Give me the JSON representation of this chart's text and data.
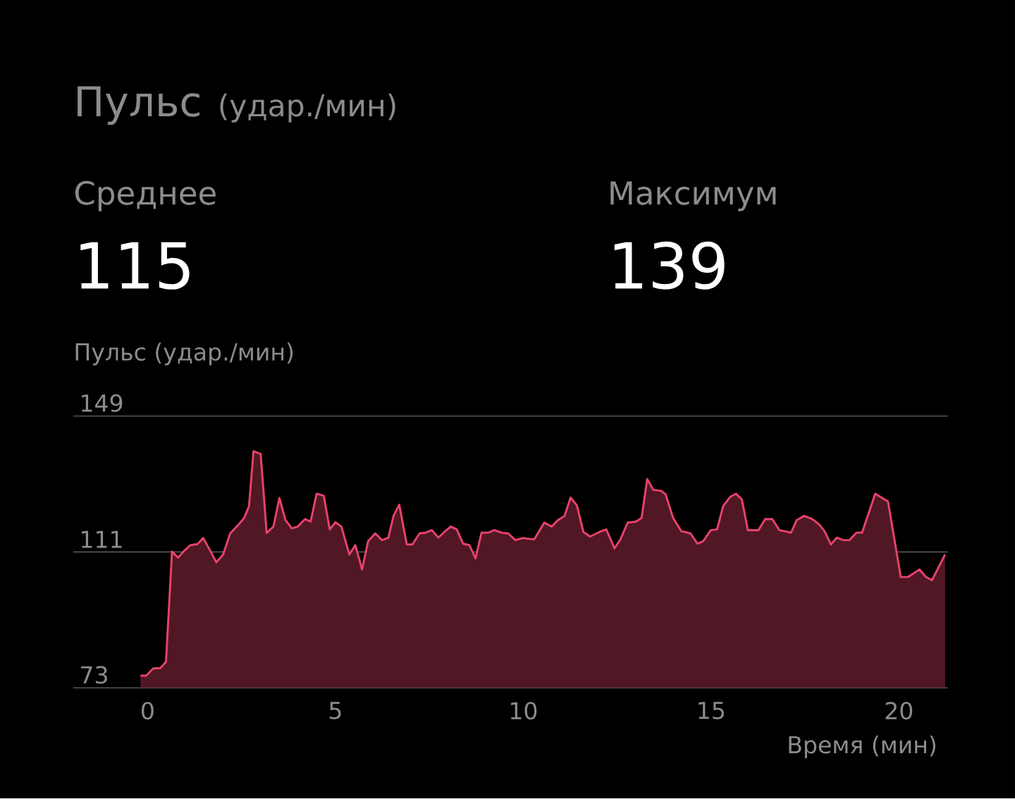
{
  "chart_data": {
    "type": "area",
    "title": "Пульс",
    "subtitle": "(удар./мин)",
    "ylabel": "Пульс (удар./мин)",
    "xlabel": "Время (мин)",
    "annotations": [
      "Среднее",
      "115",
      "Максимум",
      "139"
    ],
    "x": [
      -0.19,
      -0.04,
      0.15,
      0.34,
      0.49,
      0.65,
      0.81,
      0.98,
      1.14,
      1.33,
      1.48,
      1.68,
      1.83,
      2.01,
      2.2,
      2.39,
      2.57,
      2.7,
      2.82,
      3.01,
      3.17,
      3.35,
      3.51,
      3.67,
      3.84,
      4.0,
      4.19,
      4.34,
      4.5,
      4.69,
      4.85,
      5.0,
      5.16,
      5.37,
      5.53,
      5.71,
      5.87,
      6.06,
      6.24,
      6.41,
      6.55,
      6.7,
      6.9,
      7.05,
      7.24,
      7.4,
      7.57,
      7.74,
      7.9,
      8.07,
      8.23,
      8.4,
      8.57,
      8.73,
      8.89,
      9.07,
      9.23,
      9.42,
      9.6,
      9.79,
      9.98,
      10.29,
      10.56,
      10.76,
      10.91,
      11.1,
      11.26,
      11.43,
      11.6,
      11.78,
      12.03,
      12.21,
      12.43,
      12.59,
      12.78,
      13.0,
      13.15,
      13.3,
      13.46,
      13.67,
      13.79,
      13.99,
      14.21,
      14.45,
      14.64,
      14.79,
      14.99,
      15.16,
      15.32,
      15.51,
      15.66,
      15.82,
      15.98,
      16.26,
      16.44,
      16.63,
      16.82,
      17.13,
      17.28,
      17.48,
      17.69,
      17.87,
      18.02,
      18.19,
      18.35,
      18.52,
      18.68,
      18.87,
      19.02,
      19.37,
      19.71,
      20.05,
      20.24,
      20.55,
      20.71,
      20.88,
      21.08,
      21.23
    ],
    "series": [
      {
        "color": "#e8436a",
        "values": [
          76.4,
          76.4,
          78.4,
          78.5,
          80.3,
          111.1,
          109.4,
          111.4,
          112.9,
          113.2,
          114.9,
          111.1,
          108.1,
          110.3,
          116.2,
          118.3,
          120.5,
          123.8,
          139.2,
          138.4,
          116.3,
          118.1,
          126.1,
          119.9,
          117.6,
          118.1,
          120.2,
          119.5,
          127.3,
          126.7,
          117.3,
          119.3,
          118.1,
          110.3,
          112.9,
          106.1,
          114.0,
          116.2,
          114.3,
          115.0,
          121.2,
          124.2,
          113.1,
          113.1,
          116.2,
          116.4,
          117.1,
          115.0,
          116.6,
          118.1,
          117.3,
          113.3,
          112.9,
          109.2,
          116.4,
          116.4,
          117.1,
          116.4,
          116.2,
          114.3,
          114.9,
          114.5,
          119.2,
          118.1,
          119.8,
          121.1,
          126.2,
          124.0,
          116.6,
          115.3,
          116.6,
          117.3,
          112.0,
          114.6,
          119.2,
          119.5,
          120.5,
          131.4,
          128.4,
          128.1,
          127.1,
          120.5,
          116.8,
          116.2,
          113.3,
          114.0,
          117.1,
          117.3,
          123.8,
          126.4,
          127.3,
          125.7,
          117.1,
          117.1,
          120.2,
          120.2,
          117.1,
          116.4,
          119.9,
          121.1,
          120.2,
          118.8,
          116.8,
          113.1,
          115.0,
          114.3,
          114.3,
          116.4,
          116.4,
          127.3,
          125.1,
          104.0,
          104.0,
          106.1,
          104.1,
          103.1,
          107.2,
          110.3
        ]
      }
    ],
    "xlim": [
      -1.98,
      21.3
    ],
    "xticks": [
      0,
      5,
      10,
      15,
      20
    ],
    "ylim": [
      73,
      149
    ],
    "yticks": [
      73,
      111,
      149
    ],
    "grid": "y"
  }
}
